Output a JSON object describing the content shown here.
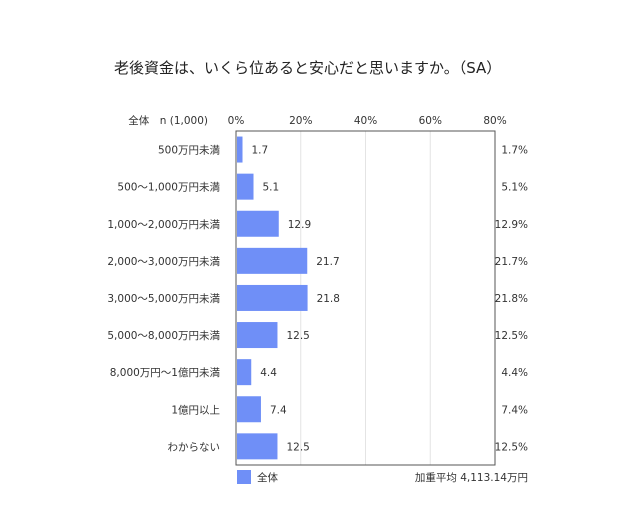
{
  "chart_data": {
    "type": "bar",
    "orientation": "horizontal",
    "title": "老後資金は、いくら位あると安心だと思いますか。（SA）",
    "header_label": "全体　n (1,000)",
    "categories": [
      "500万円未満",
      "500〜1,000万円未満",
      "1,000〜2,000万円未満",
      "2,000〜3,000万円未満",
      "3,000〜5,000万円未満",
      "5,000〜8,000万円未満",
      "8,000万円〜1億円未満",
      "1億円以上",
      "わからない"
    ],
    "series": [
      {
        "name": "全体",
        "values": [
          1.7,
          5.1,
          12.9,
          21.7,
          21.8,
          12.5,
          4.4,
          7.4,
          12.5
        ]
      }
    ],
    "right_labels": [
      "1.7%",
      "5.1%",
      "12.9%",
      "21.7%",
      "21.8%",
      "12.5%",
      "4.4%",
      "7.4%",
      "12.5%"
    ],
    "xlim": [
      0,
      80
    ],
    "x_ticks": [
      "0%",
      "20%",
      "40%",
      "60%",
      "80%"
    ],
    "grid": true,
    "legend_position": "bottom-left",
    "footnote": "加重平均 4,113.14万円",
    "colors": {
      "bar": "#6f8ff7",
      "grid": "#e4e4e4",
      "axis": "#555555"
    }
  }
}
